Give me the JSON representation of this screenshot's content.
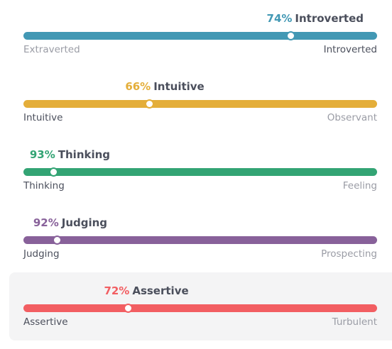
{
  "traits": [
    {
      "value": 74,
      "value_label": "74%",
      "dominant": "Introverted",
      "left": "Extraverted",
      "right": "Introverted",
      "color": "#4298b4"
    },
    {
      "value": 66,
      "value_label": "66%",
      "dominant": "Intuitive",
      "left": "Intuitive",
      "right": "Observant",
      "color": "#e4ae3a"
    },
    {
      "value": 93,
      "value_label": "93%",
      "dominant": "Thinking",
      "left": "Thinking",
      "right": "Feeling",
      "color": "#33a474"
    },
    {
      "value": 92,
      "value_label": "92%",
      "dominant": "Judging",
      "left": "Judging",
      "right": "Prospecting",
      "color": "#88619a"
    },
    {
      "value": 72,
      "value_label": "72%",
      "dominant": "Assertive",
      "left": "Assertive",
      "right": "Turbulent",
      "color": "#f25e62",
      "selected": true
    }
  ]
}
